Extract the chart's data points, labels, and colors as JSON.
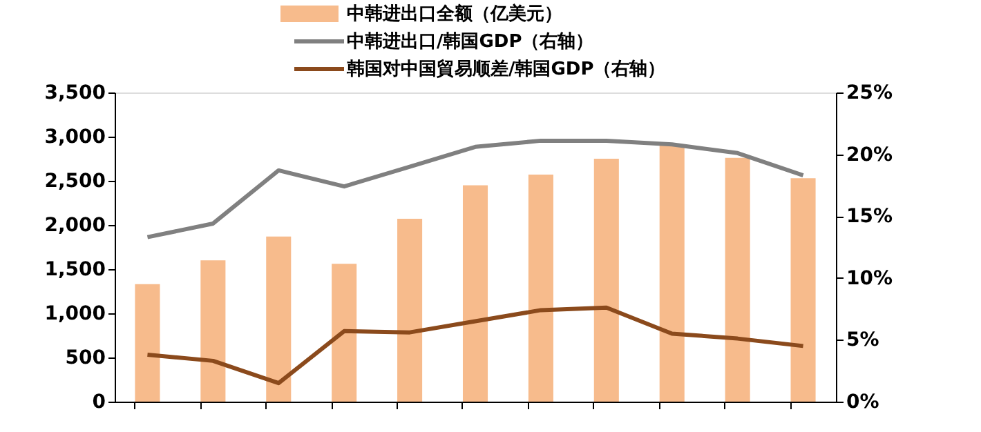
{
  "chart_data": {
    "type": "bar",
    "categories": [
      null,
      null,
      null,
      null,
      null,
      null,
      null,
      null,
      null,
      null,
      null
    ],
    "series": [
      {
        "name": "中韩进出口全额（亿美元）",
        "color": "#f7bb8c",
        "values": [
          1330,
          1600,
          1870,
          1560,
          2070,
          2450,
          2570,
          2750,
          2900,
          2760,
          2530
        ]
      },
      {
        "name": "中韩进出口/韩国GDP（右轴）",
        "type": "line",
        "axis": "y2",
        "color": "#808080",
        "values": [
          13.3,
          14.4,
          18.7,
          17.4,
          19.0,
          20.6,
          21.1,
          21.1,
          20.8,
          20.1,
          18.3
        ]
      },
      {
        "name": "韩国对中国貿易顺差/韩国GDP（右轴）",
        "type": "line",
        "axis": "y2",
        "color": "#8b4a1c",
        "values": [
          3.8,
          3.3,
          1.5,
          5.7,
          5.6,
          6.5,
          7.4,
          7.6,
          5.5,
          5.1,
          4.5
        ]
      }
    ],
    "ylim": [
      0,
      3500
    ],
    "yticks": [
      0,
      500,
      {
        "value": 1000,
        "label": "1,000"
      },
      {
        "value": 1500,
        "label": "1,500"
      },
      {
        "value": 2000,
        "label": "2,000"
      },
      {
        "value": 2500,
        "label": "2,500"
      },
      {
        "value": 3000,
        "label": "3,000"
      },
      {
        "value": 3500,
        "label": "3,500"
      }
    ],
    "y2lim": [
      0,
      25
    ],
    "y2ticks": [
      {
        "value": 0,
        "label": "0%"
      },
      {
        "value": 5,
        "label": "5%"
      },
      {
        "value": 10,
        "label": "10%"
      },
      {
        "value": 15,
        "label": "15%"
      },
      {
        "value": 20,
        "label": "20%"
      },
      {
        "value": 25,
        "label": "25%"
      }
    ],
    "grid": false,
    "legend": "top",
    "line_style": "solid"
  }
}
